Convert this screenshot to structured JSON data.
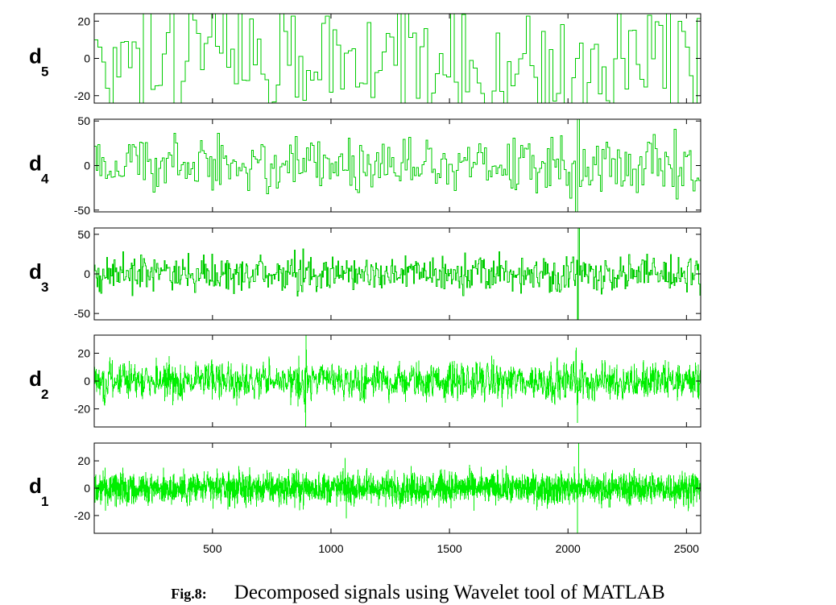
{
  "caption": {
    "figure_number": "Fig.8:",
    "text": "Decomposed signals using Wavelet tool of MATLAB"
  },
  "colors": {
    "signal": "#00cc00",
    "signal_dense": "#00ee00",
    "axes": "#000000"
  },
  "chart_data": [
    {
      "type": "line",
      "label": "d",
      "subscript": "5",
      "style": "step",
      "xlim": [
        1,
        2560
      ],
      "ylim": [
        -24,
        24
      ],
      "yticks": [
        20,
        0,
        -20
      ],
      "ytick_labels": [
        "20",
        "0",
        "-20"
      ],
      "samples": 160,
      "amplitude": 17,
      "seed": 5,
      "spikes": [
        {
          "x": 225,
          "y": 24
        },
        {
          "x": 1540,
          "y": -24
        },
        {
          "x": 1985,
          "y": -24
        }
      ],
      "xtick_labels_shown": false
    },
    {
      "type": "line",
      "label": "d",
      "subscript": "4",
      "style": "step",
      "xlim": [
        1,
        2560
      ],
      "ylim": [
        -52,
        52
      ],
      "yticks": [
        50,
        0,
        -50
      ],
      "ytick_labels": [
        "50",
        "0",
        "-50"
      ],
      "samples": 320,
      "amplitude": 16,
      "seed": 4,
      "spikes": [
        {
          "x": 2040,
          "y": 52
        },
        {
          "x": 2032,
          "y": -52
        },
        {
          "x": 220,
          "y": 26
        },
        {
          "x": 650,
          "y": -28
        }
      ],
      "xtick_labels_shown": false
    },
    {
      "type": "line",
      "label": "d",
      "subscript": "3",
      "style": "step",
      "xlim": [
        1,
        2560
      ],
      "ylim": [
        -58,
        58
      ],
      "yticks": [
        50,
        0,
        -50
      ],
      "ytick_labels": [
        "50",
        "0",
        "-50"
      ],
      "samples": 640,
      "amplitude": 11,
      "seed": 3,
      "spikes": [
        {
          "x": 2045,
          "y": 58
        },
        {
          "x": 2040,
          "y": -58
        },
        {
          "x": 845,
          "y": 30
        },
        {
          "x": 855,
          "y": -28
        }
      ],
      "xtick_labels_shown": false
    },
    {
      "type": "line",
      "label": "d",
      "subscript": "2",
      "style": "line",
      "xlim": [
        1,
        2560
      ],
      "ylim": [
        -33,
        33
      ],
      "yticks": [
        20,
        0,
        -20
      ],
      "ytick_labels": [
        "20",
        "0",
        "-20"
      ],
      "samples": 1280,
      "amplitude": 7,
      "seed": 2,
      "spikes": [
        {
          "x": 895,
          "y": 33
        },
        {
          "x": 892,
          "y": -33
        },
        {
          "x": 2040,
          "y": -30
        },
        {
          "x": 2035,
          "y": 24
        }
      ],
      "xtick_labels_shown": false
    },
    {
      "type": "line",
      "label": "d",
      "subscript": "1",
      "style": "line",
      "xlim": [
        1,
        2560
      ],
      "ylim": [
        -33,
        33
      ],
      "yticks": [
        20,
        0,
        -20
      ],
      "ytick_labels": [
        "20",
        "0",
        "-20"
      ],
      "samples": 2560,
      "amplitude": 6,
      "seed": 1,
      "spikes": [
        {
          "x": 2045,
          "y": 33
        },
        {
          "x": 2040,
          "y": -33
        },
        {
          "x": 1060,
          "y": 22
        },
        {
          "x": 1065,
          "y": -22
        }
      ],
      "xticks": [
        500,
        1000,
        1500,
        2000,
        2500
      ],
      "xtick_labels": [
        "500",
        "1000",
        "1500",
        "2000",
        "2500"
      ],
      "xtick_labels_shown": true
    }
  ]
}
